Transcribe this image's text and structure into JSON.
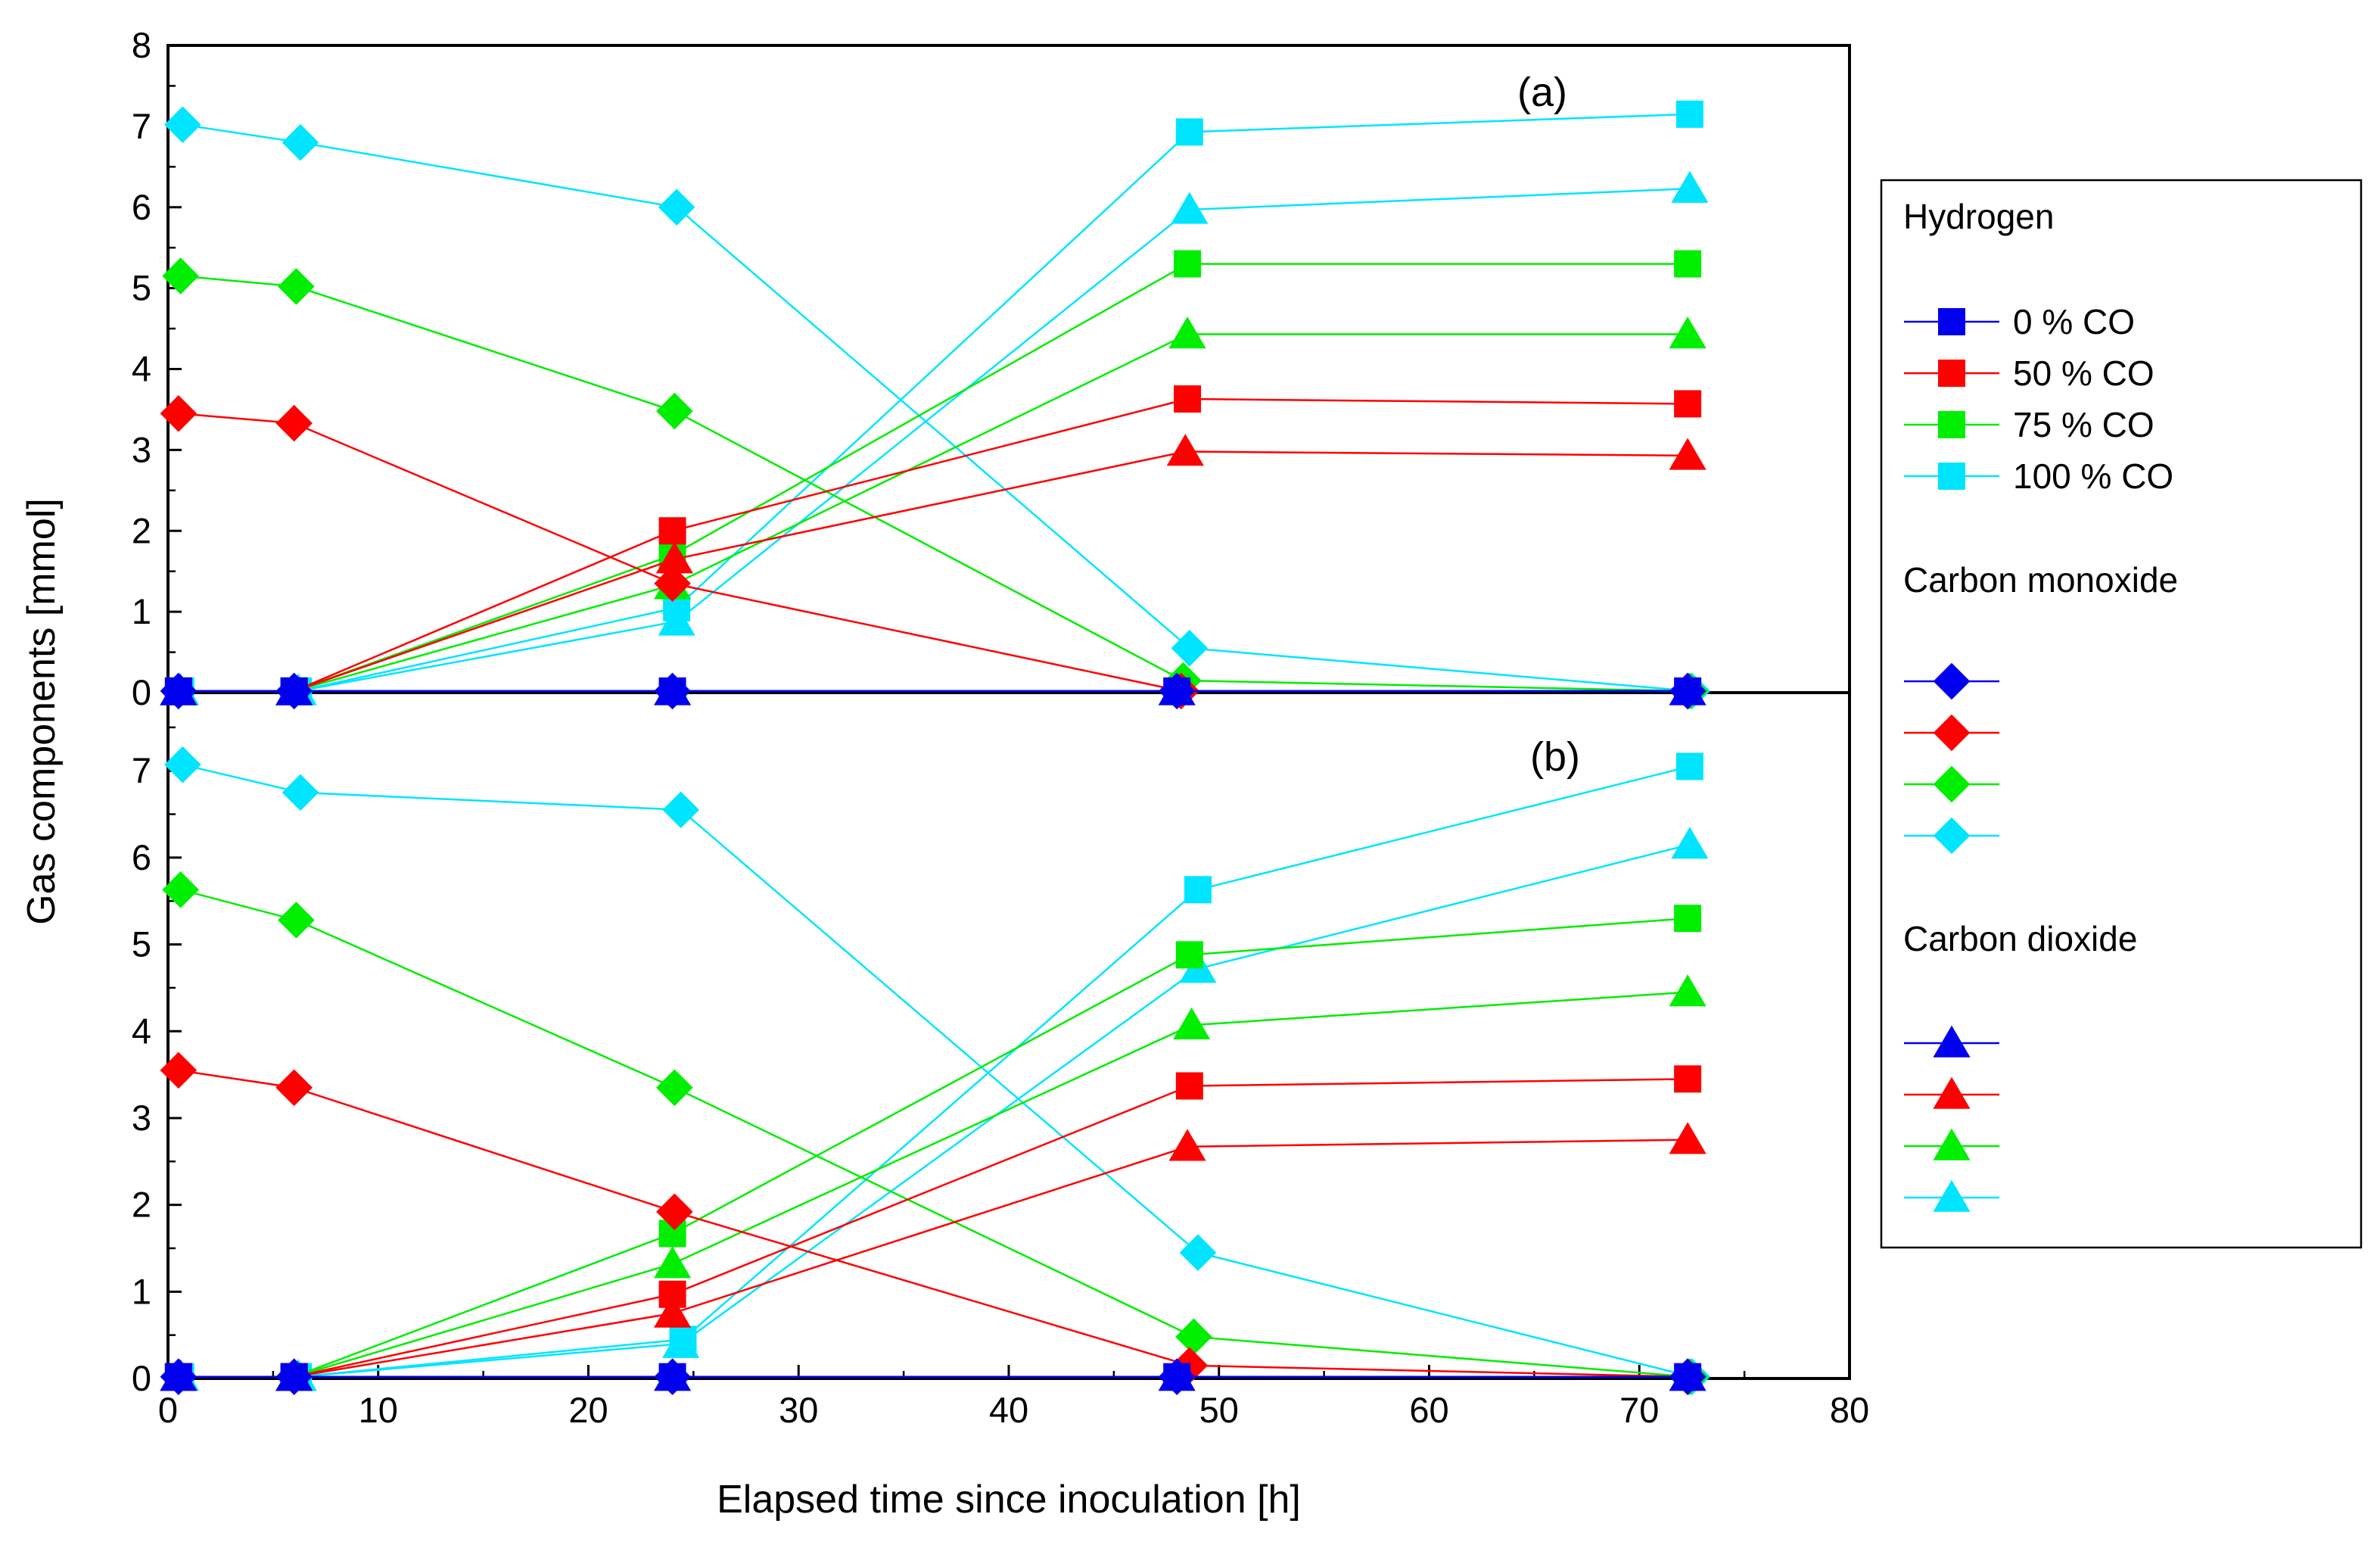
{
  "chart_data": {
    "type": "line",
    "x_label": "Elapsed time since inoculation [h]",
    "y_label": "Gas components [mmol]",
    "x_range": [
      0,
      80
    ],
    "x_ticks": [
      "0",
      "10",
      "20",
      "30",
      "40",
      "50",
      "60",
      "70",
      "80"
    ],
    "panels": [
      {
        "label": "(a)",
        "y_range": [
          0,
          8
        ],
        "y_ticks": [
          "0",
          "1",
          "2",
          "3",
          "4",
          "5",
          "6",
          "7",
          "8"
        ],
        "series": [
          {
            "gas": "Hydrogen",
            "name": "0 % CO",
            "marker": "square",
            "color": "#0000ee",
            "x": [
              0.5,
              6,
              24,
              48,
              72.3
            ],
            "y": [
              0.02,
              0.02,
              0.02,
              0.02,
              0.02
            ]
          },
          {
            "gas": "Hydrogen",
            "name": "50 % CO",
            "marker": "square",
            "color": "#ff0000",
            "x": [
              0.5,
              6,
              24,
              48.5,
              72.3
            ],
            "y": [
              0.02,
              0.02,
              2.0,
              3.63,
              3.57
            ]
          },
          {
            "gas": "Hydrogen",
            "name": "75 % CO",
            "marker": "square",
            "color": "#00ee00",
            "x": [
              0.5,
              6,
              24,
              48.5,
              72.3
            ],
            "y": [
              0.02,
              0.02,
              1.7,
              5.3,
              5.3
            ]
          },
          {
            "gas": "Hydrogen",
            "name": "100 % CO",
            "marker": "square",
            "color": "#00e5ff",
            "x": [
              0.6,
              6.2,
              24.2,
              48.6,
              72.4
            ],
            "y": [
              0.02,
              0.02,
              1.05,
              6.93,
              7.15
            ]
          },
          {
            "gas": "Carbon monoxide",
            "name": "0 % CO",
            "marker": "diamond",
            "color": "#0000ee",
            "x": [
              0.5,
              6,
              24,
              48,
              72.3
            ],
            "y": [
              0.02,
              0.02,
              0.02,
              0.02,
              0.02
            ]
          },
          {
            "gas": "Carbon monoxide",
            "name": "50 % CO",
            "marker": "diamond",
            "color": "#ff0000",
            "x": [
              0.5,
              6,
              24,
              48.2,
              72.3
            ],
            "y": [
              3.45,
              3.33,
              1.35,
              0.02,
              0.02
            ]
          },
          {
            "gas": "Carbon monoxide",
            "name": "75 % CO",
            "marker": "diamond",
            "color": "#00ee00",
            "x": [
              0.6,
              6.1,
              24.1,
              48.3,
              72.4
            ],
            "y": [
              5.15,
              5.02,
              3.48,
              0.15,
              0.02
            ]
          },
          {
            "gas": "Carbon monoxide",
            "name": "100 % CO",
            "marker": "diamond",
            "color": "#00e5ff",
            "x": [
              0.7,
              6.3,
              24.2,
              48.6,
              72.5
            ],
            "y": [
              7.02,
              6.8,
              6.0,
              0.55,
              0.02
            ]
          },
          {
            "gas": "Carbon dioxide",
            "name": "0 % CO",
            "marker": "triangle",
            "color": "#0000ee",
            "x": [
              0.5,
              6,
              24,
              48,
              72.3
            ],
            "y": [
              0.02,
              0.02,
              0.02,
              0.02,
              0.02
            ]
          },
          {
            "gas": "Carbon dioxide",
            "name": "50 % CO",
            "marker": "triangle",
            "color": "#ff0000",
            "x": [
              0.5,
              6,
              24.1,
              48.4,
              72.3
            ],
            "y": [
              0.02,
              0.02,
              1.65,
              2.98,
              2.93
            ]
          },
          {
            "gas": "Carbon dioxide",
            "name": "75 % CO",
            "marker": "triangle",
            "color": "#00ee00",
            "x": [
              0.5,
              6,
              24,
              48.5,
              72.3
            ],
            "y": [
              0.02,
              0.02,
              1.33,
              4.43,
              4.43
            ]
          },
          {
            "gas": "Carbon dioxide",
            "name": "100 % CO",
            "marker": "triangle",
            "color": "#00e5ff",
            "x": [
              0.6,
              6.2,
              24.2,
              48.6,
              72.4
            ],
            "y": [
              0.02,
              0.02,
              0.88,
              5.97,
              6.23
            ]
          }
        ]
      },
      {
        "label": "(b)",
        "y_range": [
          0,
          7.9
        ],
        "y_ticks": [
          "0",
          "1",
          "2",
          "3",
          "4",
          "5",
          "6",
          "7"
        ],
        "series": [
          {
            "gas": "Hydrogen",
            "name": "0 % CO",
            "marker": "square",
            "color": "#0000ee",
            "x": [
              0.5,
              6,
              24,
              48,
              72.3
            ],
            "y": [
              0.02,
              0.02,
              0.02,
              0.02,
              0.02
            ]
          },
          {
            "gas": "Hydrogen",
            "name": "50 % CO",
            "marker": "square",
            "color": "#ff0000",
            "x": [
              0.5,
              6,
              24,
              48.6,
              72.3
            ],
            "y": [
              0.02,
              0.02,
              0.97,
              3.37,
              3.45
            ]
          },
          {
            "gas": "Hydrogen",
            "name": "75 % CO",
            "marker": "square",
            "color": "#00ee00",
            "x": [
              0.5,
              6,
              24,
              48.6,
              72.3
            ],
            "y": [
              0.02,
              0.02,
              1.67,
              4.88,
              5.3
            ]
          },
          {
            "gas": "Hydrogen",
            "name": "100 % CO",
            "marker": "square",
            "color": "#00e5ff",
            "x": [
              0.6,
              6.2,
              24.5,
              49,
              72.4
            ],
            "y": [
              0.02,
              0.02,
              0.45,
              5.63,
              7.05
            ]
          },
          {
            "gas": "Carbon monoxide",
            "name": "0 % CO",
            "marker": "diamond",
            "color": "#0000ee",
            "x": [
              0.5,
              6,
              24,
              48,
              72.3
            ],
            "y": [
              0.02,
              0.02,
              0.02,
              0.02,
              0.02
            ]
          },
          {
            "gas": "Carbon monoxide",
            "name": "50 % CO",
            "marker": "diamond",
            "color": "#ff0000",
            "x": [
              0.5,
              6,
              24.1,
              48.6,
              72.3
            ],
            "y": [
              3.55,
              3.35,
              1.92,
              0.15,
              0.02
            ]
          },
          {
            "gas": "Carbon monoxide",
            "name": "75 % CO",
            "marker": "diamond",
            "color": "#00ee00",
            "x": [
              0.6,
              6.1,
              24.1,
              48.8,
              72.4
            ],
            "y": [
              5.63,
              5.28,
              3.35,
              0.48,
              0.02
            ]
          },
          {
            "gas": "Carbon monoxide",
            "name": "100 % CO",
            "marker": "diamond",
            "color": "#00e5ff",
            "x": [
              0.7,
              6.3,
              24.4,
              49,
              72.5
            ],
            "y": [
              7.07,
              6.75,
              6.55,
              1.45,
              0.02
            ]
          },
          {
            "gas": "Carbon dioxide",
            "name": "0 % CO",
            "marker": "triangle",
            "color": "#0000ee",
            "x": [
              0.5,
              6,
              24,
              48,
              72.3
            ],
            "y": [
              0.02,
              0.02,
              0.02,
              0.02,
              0.02
            ]
          },
          {
            "gas": "Carbon dioxide",
            "name": "50 % CO",
            "marker": "triangle",
            "color": "#ff0000",
            "x": [
              0.5,
              6,
              24,
              48.5,
              72.3
            ],
            "y": [
              0.02,
              0.02,
              0.75,
              2.67,
              2.75
            ]
          },
          {
            "gas": "Carbon dioxide",
            "name": "75 % CO",
            "marker": "triangle",
            "color": "#00ee00",
            "x": [
              0.5,
              6,
              24,
              48.7,
              72.3
            ],
            "y": [
              0.02,
              0.02,
              1.32,
              4.07,
              4.45
            ]
          },
          {
            "gas": "Carbon dioxide",
            "name": "100 % CO",
            "marker": "triangle",
            "color": "#00e5ff",
            "x": [
              0.6,
              6.2,
              24.4,
              49,
              72.4
            ],
            "y": [
              0.02,
              0.02,
              0.4,
              4.72,
              6.15
            ]
          }
        ]
      }
    ],
    "legend": {
      "position": "right",
      "groups": [
        {
          "title": "Hydrogen",
          "marker": "square",
          "entries": [
            {
              "label": "0 % CO",
              "color": "#0000ee"
            },
            {
              "label": "50 % CO",
              "color": "#ff0000"
            },
            {
              "label": "75 % CO",
              "color": "#00ee00"
            },
            {
              "label": "100 % CO",
              "color": "#00e5ff"
            }
          ]
        },
        {
          "title": "Carbon monoxide",
          "marker": "diamond",
          "entries": [
            {
              "label": "",
              "color": "#0000ee"
            },
            {
              "label": "",
              "color": "#ff0000"
            },
            {
              "label": "",
              "color": "#00ee00"
            },
            {
              "label": "",
              "color": "#00e5ff"
            }
          ]
        },
        {
          "title": "Carbon dioxide",
          "marker": "triangle",
          "entries": [
            {
              "label": "",
              "color": "#0000ee"
            },
            {
              "label": "",
              "color": "#ff0000"
            },
            {
              "label": "",
              "color": "#00ee00"
            },
            {
              "label": "",
              "color": "#00e5ff"
            }
          ]
        }
      ]
    }
  }
}
